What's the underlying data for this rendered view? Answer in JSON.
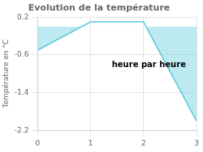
{
  "chart_data": {
    "type": "line",
    "title": "Evolution de la température",
    "y_label": "Température en °C",
    "annotation": "heure par heure",
    "x": [
      0,
      1,
      2,
      3
    ],
    "values": [
      -0.5,
      0.1,
      0.1,
      -2.0
    ],
    "color": "#5bc8dc",
    "xlim": [
      0,
      3
    ],
    "xticks": [
      0,
      1,
      2,
      3
    ],
    "ylim": [
      -2.2,
      0.2
    ],
    "yticks": [
      0.2,
      -0.6,
      -1.4,
      -2.2
    ],
    "grid": true
  }
}
